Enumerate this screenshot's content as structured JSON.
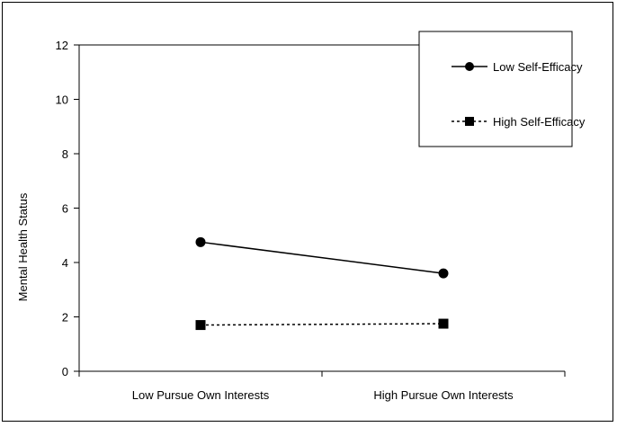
{
  "chart_data": {
    "type": "line",
    "title": "",
    "xlabel": "",
    "ylabel": "Mental Health Status",
    "categories": [
      "Low Pursue Own Interests",
      "High Pursue Own Interests"
    ],
    "ylim": [
      0,
      12
    ],
    "yticks": [
      0,
      2,
      4,
      6,
      8,
      10,
      12
    ],
    "grid": false,
    "legend_position": "top-right",
    "series": [
      {
        "name": "Low Self-Efficacy",
        "values": [
          4.75,
          3.6
        ],
        "line_style": "solid",
        "marker": "circle",
        "color": "#000000"
      },
      {
        "name": "High Self-Efficacy",
        "values": [
          1.7,
          1.75
        ],
        "line_style": "dashed",
        "marker": "square",
        "color": "#000000"
      }
    ]
  }
}
